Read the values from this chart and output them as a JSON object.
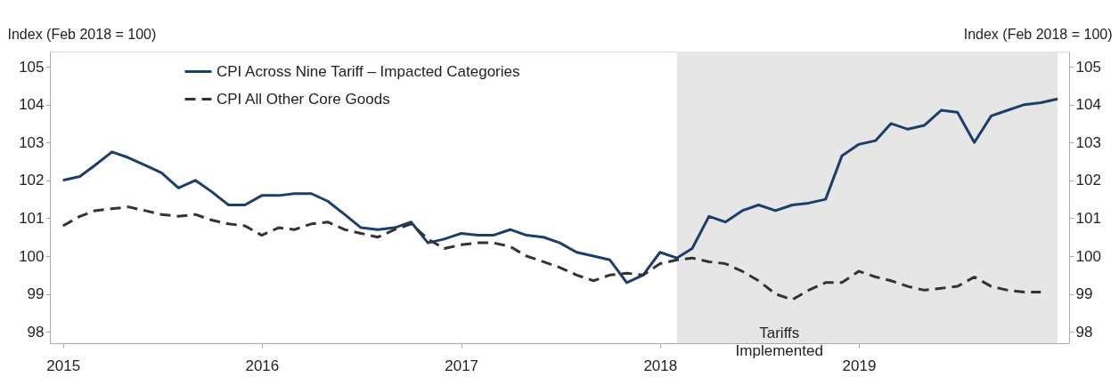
{
  "chart_data": {
    "type": "line",
    "ylabel": "Index (Feb 2018 = 100)",
    "y2label": "Index (Feb 2018 = 100)",
    "x": [
      "2015-01",
      "2015-02",
      "2015-03",
      "2015-04",
      "2015-05",
      "2015-06",
      "2015-07",
      "2015-08",
      "2015-09",
      "2015-10",
      "2015-11",
      "2015-12",
      "2016-01",
      "2016-02",
      "2016-03",
      "2016-04",
      "2016-05",
      "2016-06",
      "2016-07",
      "2016-08",
      "2016-09",
      "2016-10",
      "2016-11",
      "2016-12",
      "2017-01",
      "2017-02",
      "2017-03",
      "2017-04",
      "2017-05",
      "2017-06",
      "2017-07",
      "2017-08",
      "2017-09",
      "2017-10",
      "2017-11",
      "2017-12",
      "2018-01",
      "2018-02",
      "2018-03",
      "2018-04",
      "2018-05",
      "2018-06",
      "2018-07",
      "2018-08",
      "2018-09",
      "2018-10",
      "2018-11",
      "2018-12",
      "2019-01",
      "2019-02",
      "2019-03",
      "2019-04",
      "2019-05",
      "2019-06",
      "2019-07",
      "2019-08",
      "2019-09",
      "2019-10",
      "2019-11",
      "2019-12",
      "2020-01"
    ],
    "series": [
      {
        "name": "CPI Across Nine Tariff – Impacted Categories",
        "color": "#1b3f6b",
        "line_style": "solid",
        "values": [
          102.0,
          102.1,
          102.4,
          102.75,
          102.6,
          102.4,
          102.2,
          101.8,
          102.0,
          101.7,
          101.35,
          101.35,
          101.6,
          101.6,
          101.65,
          101.65,
          101.45,
          101.1,
          100.75,
          100.7,
          100.75,
          100.9,
          100.35,
          100.45,
          100.6,
          100.55,
          100.55,
          100.7,
          100.55,
          100.5,
          100.35,
          100.1,
          100.0,
          99.9,
          99.3,
          99.5,
          100.1,
          99.95,
          100.2,
          101.05,
          100.9,
          101.2,
          101.35,
          101.2,
          101.35,
          101.4,
          101.5,
          102.65,
          102.95,
          103.05,
          103.5,
          103.35,
          103.45,
          103.85,
          103.8,
          103.0,
          103.7,
          103.85,
          104.0,
          104.05,
          104.15
        ]
      },
      {
        "name": "CPI All Other Core Goods",
        "color": "#333333",
        "line_style": "dashed",
        "values": [
          100.8,
          101.05,
          101.2,
          101.25,
          101.3,
          101.2,
          101.1,
          101.05,
          101.1,
          100.95,
          100.85,
          100.8,
          100.55,
          100.75,
          100.7,
          100.85,
          100.9,
          100.7,
          100.6,
          100.5,
          100.7,
          100.85,
          100.45,
          100.2,
          100.3,
          100.35,
          100.35,
          100.25,
          100.0,
          99.85,
          99.7,
          99.5,
          99.35,
          99.5,
          99.55,
          99.5,
          99.8,
          99.9,
          99.95,
          99.85,
          99.8,
          99.6,
          99.35,
          99.0,
          98.85,
          99.1,
          99.3,
          99.3,
          99.6,
          99.45,
          99.35,
          99.2,
          99.1,
          99.15,
          99.2,
          99.45,
          99.2,
          99.1,
          99.05,
          99.05,
          null
        ]
      }
    ],
    "xlim": [
      "2014-12-08",
      "2020-01-22"
    ],
    "xticks": [
      {
        "value": "2015-01",
        "label": "2015"
      },
      {
        "value": "2016-01",
        "label": "2016"
      },
      {
        "value": "2017-01",
        "label": "2017"
      },
      {
        "value": "2018-01",
        "label": "2018"
      },
      {
        "value": "2019-01",
        "label": "2019"
      }
    ],
    "ylim": [
      97.7,
      105.4
    ],
    "yticks": [
      98,
      99,
      100,
      101,
      102,
      103,
      104,
      105
    ],
    "y2lim": [
      97.7,
      105.4
    ],
    "y2ticks": [
      98,
      99,
      100,
      101,
      102,
      103,
      104,
      105
    ],
    "bands": [
      {
        "axis": "x",
        "from": "2018-02",
        "to": "2020-01",
        "label": "Tariffs Implemented",
        "color": "#e6e6e6"
      }
    ],
    "legend": "top left",
    "grid": false
  }
}
